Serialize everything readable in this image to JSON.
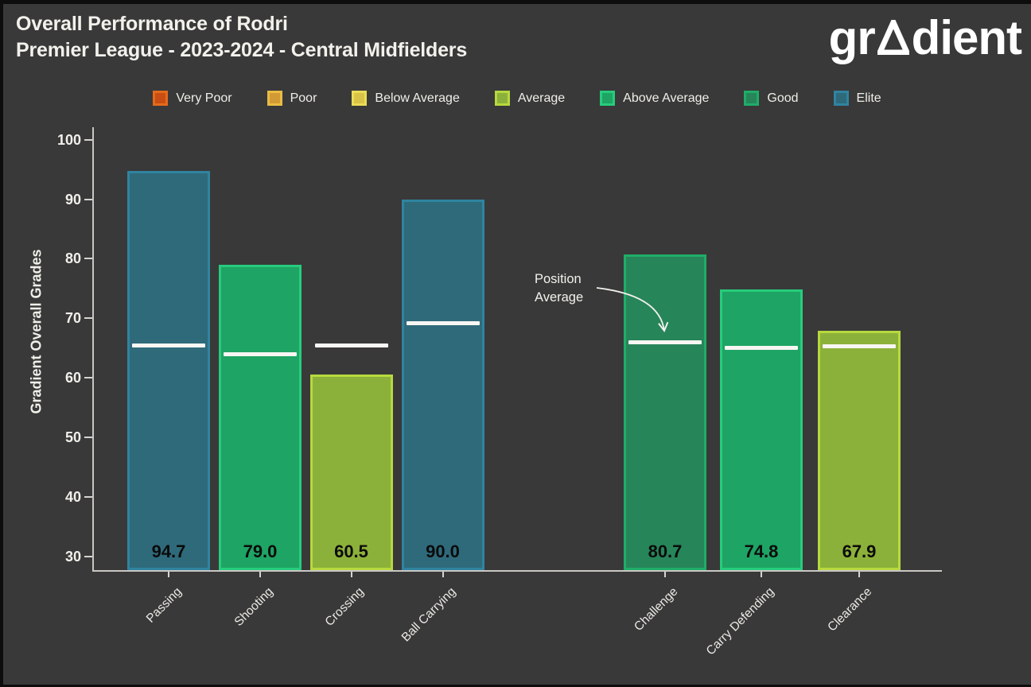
{
  "header": {
    "title": "Overall Performance of Rodri",
    "subtitle": "Premier League - 2023-2024 - Central Midfielders"
  },
  "logo": {
    "left": "gr",
    "right": "dient",
    "triangle_icon": "triangle-a-glyph"
  },
  "colors": {
    "background": "#393939",
    "axis": "#c9c7c3",
    "text": "#f0efea",
    "value_label": "#0b0b0b",
    "avg_line": "#f7f6f3"
  },
  "grade_colors": {
    "Very Poor": {
      "fill": "#c94e14",
      "border": "#e56a1a"
    },
    "Poor": {
      "fill": "#d29a35",
      "border": "#e9bc43"
    },
    "Below Average": {
      "fill": "#d8c348",
      "border": "#ebdc55"
    },
    "Average": {
      "fill": "#8cb13a",
      "border": "#b7d93f"
    },
    "Above Average": {
      "fill": "#1ea464",
      "border": "#27cc7c"
    },
    "Good": {
      "fill": "#27855a",
      "border": "#1fad68"
    },
    "Elite": {
      "fill": "#2f6a7b",
      "border": "#2f84a0"
    }
  },
  "legend": {
    "items": [
      {
        "label": "Very Poor"
      },
      {
        "label": "Poor"
      },
      {
        "label": "Below Average"
      },
      {
        "label": "Average"
      },
      {
        "label": "Above Average"
      },
      {
        "label": "Good"
      },
      {
        "label": "Elite"
      }
    ]
  },
  "chart_data": {
    "type": "bar",
    "title": "Overall Performance of Rodri",
    "subtitle": "Premier League - 2023-2024 - Central Midfielders",
    "ylabel": "Gradient Overall Grades",
    "xlabel": "",
    "ylim": [
      27.7,
      102.1
    ],
    "yticks": [
      30,
      40,
      50,
      60,
      70,
      80,
      90,
      100
    ],
    "grid": false,
    "legend_position": "top",
    "categories": [
      "Passing",
      "Shooting",
      "Crossing",
      "Ball Carrying",
      "Challenge",
      "Carry Defending",
      "Clearance"
    ],
    "values": [
      94.7,
      79.0,
      60.5,
      90.0,
      80.7,
      74.8,
      67.9
    ],
    "grades": [
      "Elite",
      "Above Average",
      "Average",
      "Elite",
      "Good",
      "Above Average",
      "Average"
    ],
    "position_average": [
      65.5,
      64.0,
      65.5,
      69.3,
      66.0,
      65.1,
      65.4
    ],
    "annotation": {
      "text": "Position\nAverage",
      "points_to": "position average line of Challenge bar"
    }
  }
}
